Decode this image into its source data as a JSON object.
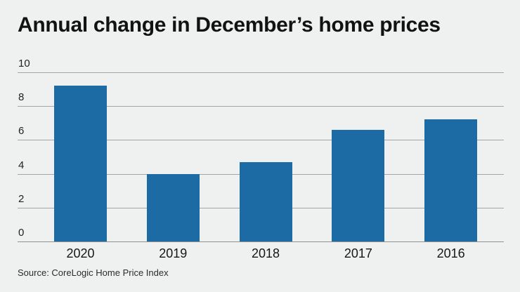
{
  "title": "Annual change in December’s home prices",
  "source": "Source: CoreLogic Home Price Index",
  "colors": {
    "background": "#eff1f0",
    "bar": "#1d6ba4",
    "gridline": "#a3a6a5",
    "axis_line": "#8f9291",
    "title_text": "#121212",
    "label_text": "#222222"
  },
  "chart_data": {
    "type": "bar",
    "categories": [
      "2020",
      "2019",
      "2018",
      "2017",
      "2016"
    ],
    "values": [
      9.2,
      4.0,
      4.7,
      6.6,
      7.2
    ],
    "title": "Annual change in December’s home prices",
    "xlabel": "",
    "ylabel": "",
    "ylim": [
      0,
      10
    ],
    "yticks": [
      0,
      2,
      4,
      6,
      8,
      10
    ],
    "grid": true,
    "legend": false,
    "source": "Source: CoreLogic Home Price Index"
  }
}
